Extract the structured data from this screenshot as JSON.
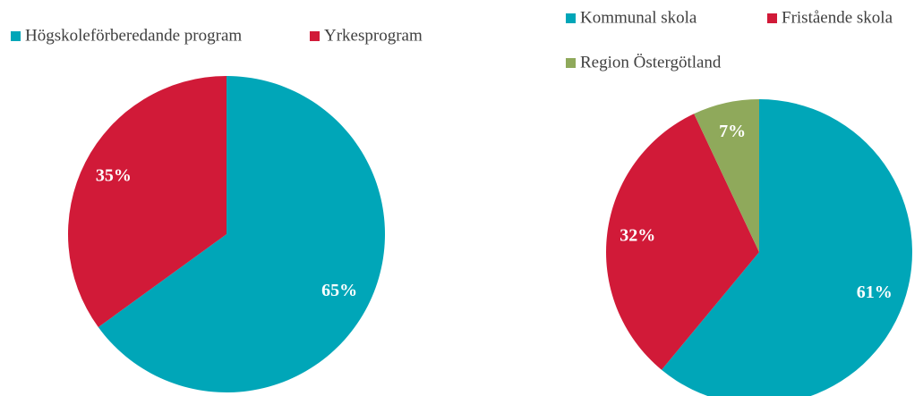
{
  "chart_data": [
    {
      "type": "pie",
      "categories": [
        "Högskoleförberedande program",
        "Yrkesprogram"
      ],
      "values": [
        65,
        35
      ],
      "value_labels": [
        "65%",
        "35%"
      ],
      "colors": [
        "#00a6b8",
        "#d11a38"
      ]
    },
    {
      "type": "pie",
      "categories": [
        "Kommunal skola",
        "Fristående skola",
        "Region Östergötland"
      ],
      "values": [
        61,
        32,
        7
      ],
      "value_labels": [
        "61%",
        "32%",
        "7%"
      ],
      "colors": [
        "#00a6b8",
        "#d11a38",
        "#8fa95b"
      ]
    }
  ]
}
